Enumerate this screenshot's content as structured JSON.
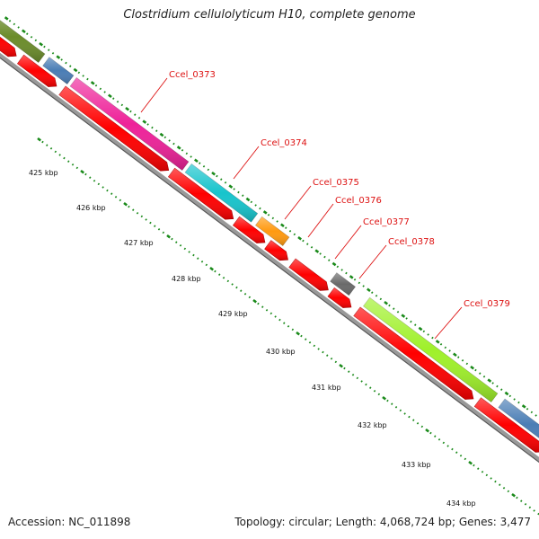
{
  "title": "Clostridium cellulolyticum H10, complete genome",
  "footer": {
    "accession": "Accession: NC_011898",
    "summary": "Topology: circular; Length: 4,068,724 bp; Genes: 3,477"
  },
  "genome": {
    "kbp_labels": [
      "425 kbp",
      "426 kbp",
      "427 kbp",
      "428 kbp",
      "429 kbp",
      "430 kbp",
      "431 kbp",
      "432 kbp",
      "433 kbp",
      "434 kbp"
    ]
  },
  "gene_labels": [
    "Ccel_0373",
    "Ccel_0374",
    "Ccel_0375",
    "Ccel_0376",
    "Ccel_0377",
    "Ccel_0378",
    "Ccel_0379"
  ],
  "colors": {
    "olive": "#6b8c2a",
    "steel_blue": "#4a7db5",
    "magenta": "#ee2299",
    "cyan": "#17c4cc",
    "orange": "#ff9a10",
    "gray": "#6a6a6a",
    "lime": "#9ff02a",
    "red": "#ff0000",
    "backbone": "#888888",
    "tick_green": "#1a8a1a",
    "label_red": "#dd1111"
  }
}
